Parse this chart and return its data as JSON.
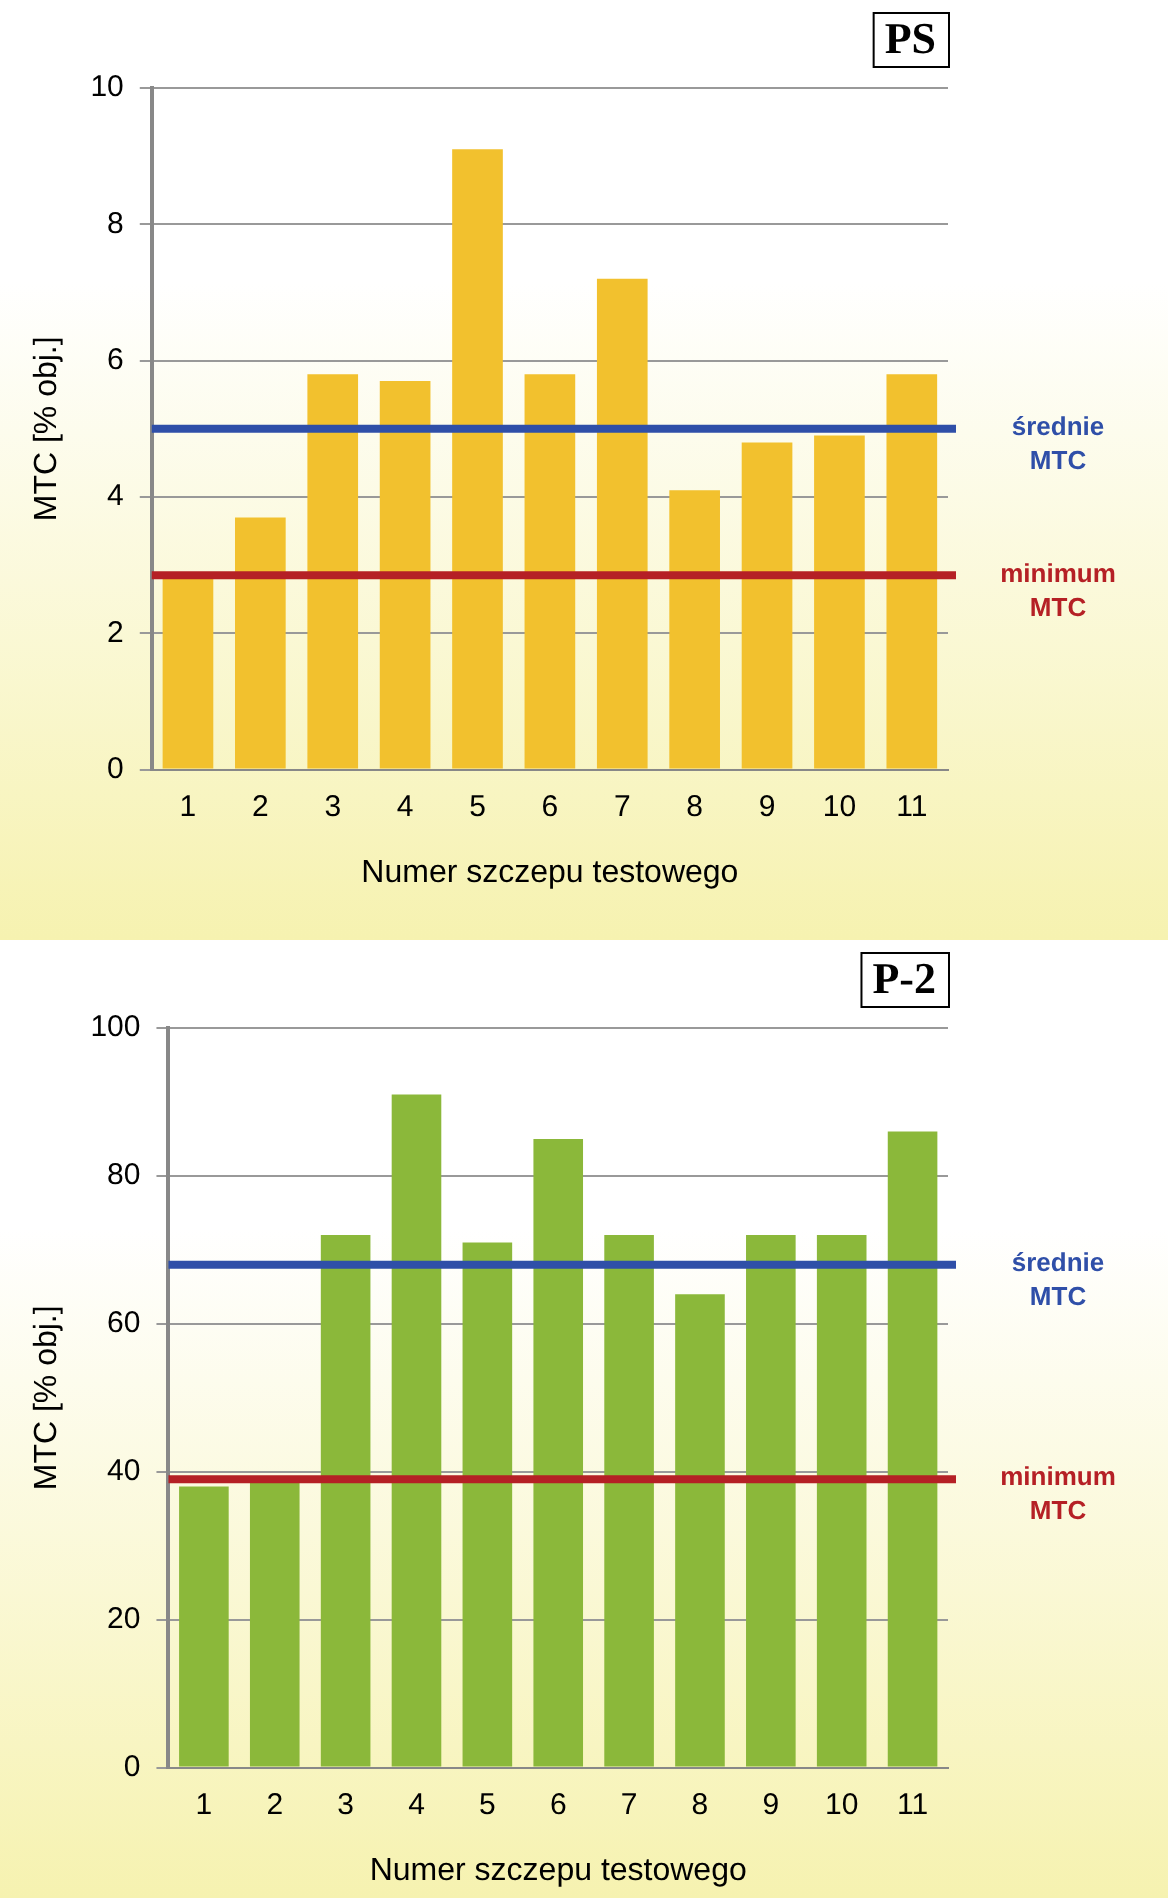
{
  "chart_data": [
    {
      "type": "bar",
      "title": "PS",
      "xlabel": "Numer szczepu testowego",
      "ylabel": "MTC [% obj.]",
      "categories": [
        "1",
        "2",
        "3",
        "4",
        "5",
        "6",
        "7",
        "8",
        "9",
        "10",
        "11"
      ],
      "values": [
        2.8,
        3.7,
        5.8,
        5.7,
        9.1,
        5.8,
        7.2,
        4.1,
        4.8,
        4.9,
        5.8
      ],
      "color": "#f2c12e",
      "ylim": [
        0,
        10
      ],
      "yticks": [
        0,
        2,
        4,
        6,
        8,
        10
      ],
      "grid": "y",
      "ref_lines": [
        {
          "axis": "y",
          "value": 5,
          "label": "średnie MTC",
          "color": "#2f4fa8"
        },
        {
          "axis": "y",
          "value": 2.85,
          "label": "minimum MTC",
          "color": "#b52025"
        }
      ]
    },
    {
      "type": "bar",
      "title": "P-2",
      "xlabel": "Numer szczepu testowego",
      "ylabel": "MTC [% obj.]",
      "categories": [
        "1",
        "2",
        "3",
        "4",
        "5",
        "6",
        "7",
        "8",
        "9",
        "10",
        "11"
      ],
      "values": [
        38,
        39,
        72,
        91,
        71,
        85,
        72,
        64,
        72,
        72,
        86
      ],
      "color": "#8bb83a",
      "ylim": [
        0,
        100
      ],
      "yticks": [
        0,
        20,
        40,
        60,
        80,
        100
      ],
      "grid": "y",
      "ref_lines": [
        {
          "axis": "y",
          "value": 68,
          "label": "średnie MTC",
          "color": "#2f4fa8"
        },
        {
          "axis": "y",
          "value": 39,
          "label": "minimum MTC",
          "color": "#b52025"
        }
      ]
    }
  ]
}
